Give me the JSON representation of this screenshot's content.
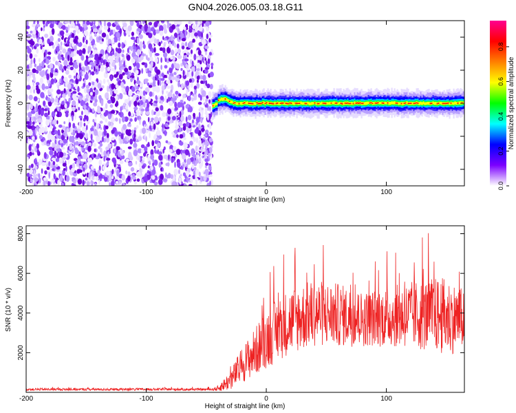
{
  "title": "GN04.2026.005.03.18.G11",
  "chart_data": [
    {
      "type": "heatmap",
      "xlabel": "Height of straight line (km)",
      "ylabel": "Frequency (Hz)",
      "xlim": [
        -200,
        165
      ],
      "ylim": [
        -50,
        50
      ],
      "x_ticks": [
        -200,
        -100,
        0,
        100
      ],
      "y_ticks": [
        40,
        20,
        0,
        -20,
        -40
      ],
      "grid": false,
      "noise_region_x": [
        -200,
        -45
      ],
      "signal_start_x": -45,
      "signal_center_frequency": 0,
      "signal_band_halfwidth_hz": 4,
      "colorbar": {
        "label": "Normalized spectral amplitude",
        "range": [
          0,
          0.95
        ],
        "ticks": [
          "0.0",
          "0.2",
          "0.4",
          "0.6",
          "0.8"
        ],
        "colors": [
          "#ffffff",
          "#7b00ff",
          "#0000ff",
          "#00ffff",
          "#00ff00",
          "#ffff00",
          "#ff8000",
          "#ff0000",
          "#ff0090"
        ]
      }
    },
    {
      "type": "line",
      "xlabel": "Height of straight line (km)",
      "ylabel": "SNR (10 * v/v)",
      "xlim": [
        -200,
        165
      ],
      "ylim": [
        0,
        8400
      ],
      "x_ticks": [
        -200,
        -100,
        0,
        100
      ],
      "y_ticks": [
        2000,
        4000,
        6000,
        8000
      ],
      "grid": false,
      "series": [
        {
          "color": "#ee2222",
          "x": [
            -200,
            -45,
            -40,
            -30,
            -20,
            -10,
            0,
            10,
            20,
            30,
            40,
            60,
            80,
            100,
            120,
            140,
            150,
            165
          ],
          "y": [
            150,
            150,
            200,
            600,
            1400,
            2000,
            2700,
            3200,
            3600,
            3800,
            4000,
            3900,
            3700,
            3800,
            3900,
            3900,
            3800,
            3700
          ],
          "spread": [
            60,
            60,
            150,
            500,
            900,
            1200,
            1500,
            1600,
            1700,
            1700,
            1700,
            1600,
            1400,
            1500,
            1700,
            1900,
            2000,
            1500
          ]
        }
      ]
    }
  ]
}
